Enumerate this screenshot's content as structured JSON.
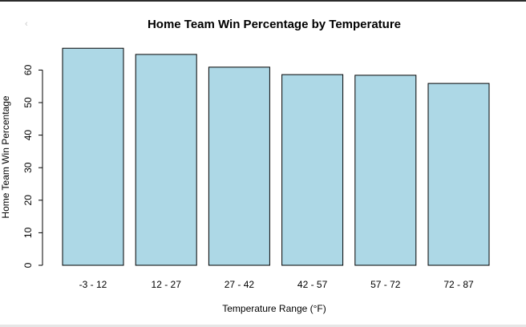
{
  "chart_data": {
    "type": "bar",
    "title": "Home Team Win Percentage by Temperature",
    "xlabel": "Temperature Range (°F)",
    "ylabel": "Home Team Win Percentage",
    "categories": [
      "-3 - 12",
      "12 - 27",
      "27 - 42",
      "42 - 57",
      "57 - 72",
      "72 - 87"
    ],
    "values": [
      66.7,
      64.8,
      60.9,
      58.6,
      58.4,
      55.9
    ],
    "yticks": [
      0,
      10,
      20,
      30,
      40,
      50,
      60
    ],
    "ylim": [
      0,
      67
    ],
    "grid": false,
    "legend": "none",
    "bar_color": "#add8e6",
    "bar_edge_color": "#000000"
  }
}
